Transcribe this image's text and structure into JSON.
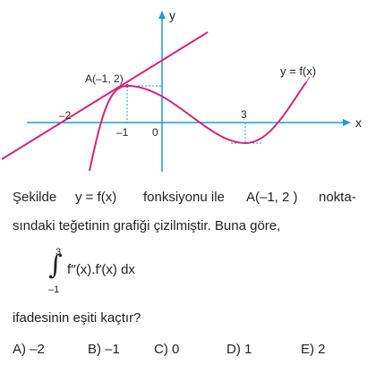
{
  "graph": {
    "axis_x": "x",
    "axis_y": "y",
    "point_label": "A(–1, 2)",
    "curve_label": "y = f(x)",
    "tick_neg2": "–2",
    "tick_neg1": "–1",
    "origin": "0",
    "tick_3": "3",
    "colors": {
      "axis": "#1f9bd7",
      "curve": "#d6247a",
      "helper": "#1f9bd7"
    }
  },
  "question": {
    "line1_prefix": "Şekilde",
    "line1_func": "y = f(x)",
    "line1_mid": "fonksiyonu ile",
    "line1_point": "A(–1, 2 )",
    "line1_suffix": "nokta-",
    "line2": "sındaki teğetinin grafiği çizilmiştir. Buna göre,",
    "integral_upper": "3",
    "integral_lower": "–1",
    "integral_sign": "∫",
    "integrand": "f′′(x).f′(x) dx",
    "line3": "ifadesinin eşiti kaçtır?"
  },
  "options": [
    {
      "letter": "A)",
      "value": "–2"
    },
    {
      "letter": "B)",
      "value": "–1"
    },
    {
      "letter": "C)",
      "value": "0"
    },
    {
      "letter": "D)",
      "value": "1"
    },
    {
      "letter": "E)",
      "value": "2"
    }
  ]
}
